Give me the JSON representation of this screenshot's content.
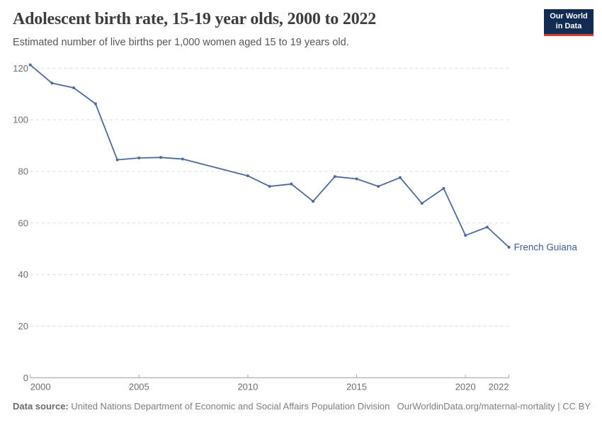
{
  "logo": {
    "line1": "Our World",
    "line2": "in Data",
    "bg_color": "#122b52",
    "accent_color": "#d63e32"
  },
  "chart_data": {
    "type": "line",
    "title": "Adolescent birth rate, 15-19 year olds, 2000 to 2022",
    "subtitle": "Estimated number of live births per 1,000 women aged 15 to 19 years old.",
    "x": [
      2000,
      2001,
      2002,
      2003,
      2004,
      2005,
      2006,
      2007,
      2010,
      2011,
      2012,
      2013,
      2014,
      2015,
      2016,
      2017,
      2018,
      2019,
      2020,
      2021,
      2022
    ],
    "series": [
      {
        "name": "French Guiana",
        "color": "#4c6a9c",
        "label_color": "#43618f",
        "values": [
          121.3,
          114.2,
          112.4,
          106.2,
          84.5,
          85.2,
          85.4,
          84.8,
          78.3,
          74.2,
          75.1,
          68.4,
          78.0,
          77.1,
          74.2,
          77.6,
          67.6,
          73.4,
          55.2,
          58.4,
          50.6
        ]
      }
    ],
    "xlabel": "",
    "ylabel": "",
    "xlim": [
      2000,
      2022
    ],
    "ylim": [
      0,
      120
    ],
    "xticks": [
      2000,
      2005,
      2010,
      2015,
      2020,
      2022
    ],
    "yticks": [
      0,
      20,
      40,
      60,
      80,
      100,
      120
    ],
    "grid": "horizontal-dashed",
    "legend": "end-of-line-label"
  },
  "footer": {
    "datasource_label": "Data source:",
    "datasource_text": " United Nations Department of Economic and Social Affairs Population Division",
    "link_text": "OurWorldinData.org/maternal-mortality | CC BY"
  },
  "colors": {
    "grid": "#dcdcdc",
    "axis": "#9a9a9a",
    "tick": "#ababab",
    "tick_label": "#6e6e6e",
    "title": "#3d3d3d",
    "subtitle": "#575757",
    "footer": "#7e7e7e"
  }
}
